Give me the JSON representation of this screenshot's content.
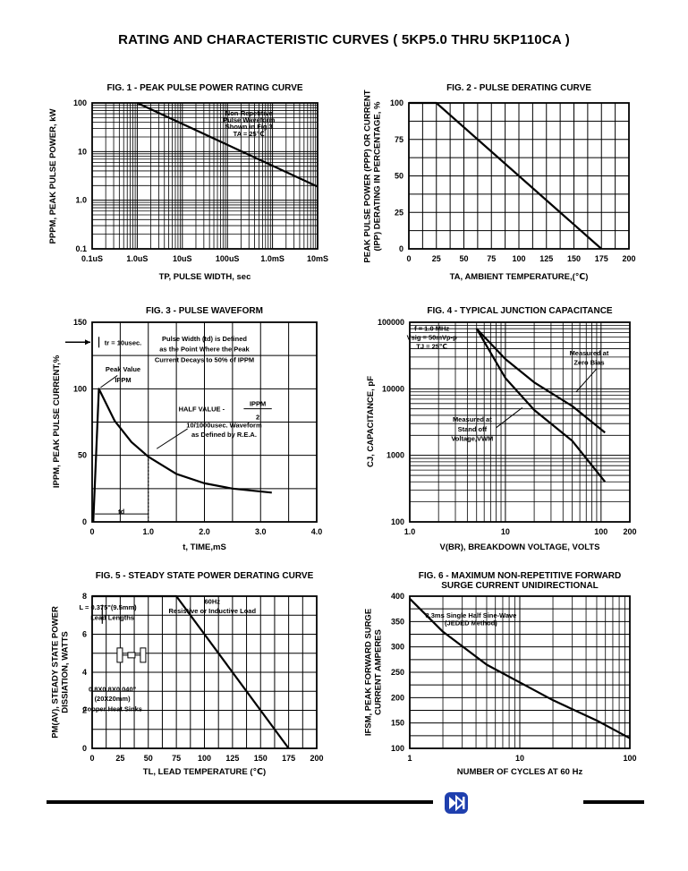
{
  "page_title": "RATING AND CHARACTERISTIC CURVES ( 5KP5.0 THRU 5KP110CA )",
  "chart_data": [
    {
      "id": "fig1",
      "type": "line",
      "title": "FIG. 1 - PEAK PULSE POWER RATING CURVE",
      "xlabel": "TP, PULSE WIDTH, sec",
      "ylabel": "PPPM, PEAK PULSE POWER, kW",
      "x_scale": "log",
      "y_scale": "log",
      "xlim": [
        1e-07,
        0.01
      ],
      "ylim": [
        0.1,
        100
      ],
      "x_ticks": [
        {
          "value": 1e-07,
          "label": "0.1uS"
        },
        {
          "value": 1e-06,
          "label": "1.0uS"
        },
        {
          "value": 1e-05,
          "label": "10uS"
        },
        {
          "value": 0.0001,
          "label": "100uS"
        },
        {
          "value": 0.001,
          "label": "1.0mS"
        },
        {
          "value": 0.01,
          "label": "10mS"
        }
      ],
      "y_ticks": [
        {
          "value": 0.1,
          "label": "0.1"
        },
        {
          "value": 1,
          "label": "1.0"
        },
        {
          "value": 10,
          "label": "10"
        },
        {
          "value": 100,
          "label": "100"
        }
      ],
      "series": [
        {
          "x": [
            1e-06,
            0.01
          ],
          "y": [
            100,
            1.9
          ]
        }
      ],
      "annotations": [
        {
          "text": "Non-Repetitive",
          "x": 0.0003,
          "y": 55
        },
        {
          "text": "Pulse Waveform",
          "x": 0.0003,
          "y": 40
        },
        {
          "text": "Shown in Fig.3",
          "x": 0.0003,
          "y": 29
        },
        {
          "text": "TA = 25℃",
          "x": 0.0003,
          "y": 21
        }
      ],
      "grid": true
    },
    {
      "id": "fig2",
      "type": "line",
      "title": "FIG. 2 - PULSE DERATING CURVE",
      "xlabel": "TA, AMBIENT TEMPERATURE,(℃)",
      "ylabel": "PEAK PULSE POWER (PPP) OR CURRENT (IPP) DERATING IN PERCENTAGE, %",
      "ylabel_lines": [
        "PEAK PULSE POWER (PPP) OR CURRENT",
        "(IPP) DERATING IN PERCENTAGE, %"
      ],
      "xlim": [
        0,
        200
      ],
      "ylim": [
        0,
        100
      ],
      "x_ticks": [
        0,
        25,
        50,
        75,
        100,
        125,
        150,
        175,
        200
      ],
      "y_ticks": [
        0,
        25,
        50,
        75,
        100
      ],
      "series": [
        {
          "x": [
            0,
            25,
            175
          ],
          "y": [
            100,
            100,
            0
          ]
        }
      ],
      "grid": true
    },
    {
      "id": "fig3",
      "type": "line",
      "title": "FIG. 3 - PULSE WAVEFORM",
      "xlabel": "t, TIME,mS",
      "ylabel": "IPPM, PEAK PULSE CURRENT,%",
      "xlim": [
        0,
        4
      ],
      "ylim": [
        0,
        150
      ],
      "x_ticks": [
        {
          "value": 0,
          "label": "0"
        },
        {
          "value": 1,
          "label": "1.0"
        },
        {
          "value": 2,
          "label": "2.0"
        },
        {
          "value": 3,
          "label": "3.0"
        },
        {
          "value": 4,
          "label": "4.0"
        }
      ],
      "y_ticks": [
        0,
        50,
        100,
        150
      ],
      "series": [
        {
          "x": [
            0.02,
            0.12,
            0.4,
            0.7,
            1.0,
            1.5,
            2.0,
            2.5,
            3.2
          ],
          "y": [
            0,
            100,
            76,
            60,
            49,
            36,
            29,
            25,
            22
          ]
        }
      ],
      "annotations": [
        {
          "text": "tr = 10usec.",
          "x": 0.55,
          "y": 133
        },
        {
          "text": "Pulse Width (td) is Defined",
          "x": 2.0,
          "y": 136
        },
        {
          "text": "as the Point Where the Peak",
          "x": 2.0,
          "y": 128
        },
        {
          "text": "Current Decays to 50% of IPPM",
          "x": 2.0,
          "y": 120
        },
        {
          "text": "Peak Value",
          "x": 0.55,
          "y": 113
        },
        {
          "text": "IPPM",
          "x": 0.55,
          "y": 105
        },
        {
          "text": "HALF VALUE -",
          "x": 1.95,
          "y": 83
        },
        {
          "text": "IPPM",
          "x": 2.95,
          "y": 87
        },
        {
          "text": "2",
          "x": 2.95,
          "y": 77
        },
        {
          "text": "10/1000usec. Waveform",
          "x": 2.35,
          "y": 71
        },
        {
          "text": "as Defined by R.E.A.",
          "x": 2.35,
          "y": 64
        },
        {
          "text": "td",
          "x": 0.52,
          "y": 6
        }
      ],
      "grid": true
    },
    {
      "id": "fig4",
      "type": "line",
      "title": "FIG. 4 - TYPICAL JUNCTION CAPACITANCE",
      "xlabel": "V(BR), BREAKDOWN VOLTAGE, VOLTS",
      "ylabel": "CJ, CAPACITANCE, pF",
      "x_scale": "log",
      "y_scale": "log",
      "xlim": [
        1,
        200
      ],
      "ylim": [
        100,
        100000
      ],
      "x_ticks": [
        {
          "value": 1,
          "label": "1.0"
        },
        {
          "value": 10,
          "label": "10"
        },
        {
          "value": 100,
          "label": "100"
        },
        {
          "value": 200,
          "label": "200"
        }
      ],
      "y_ticks": [
        {
          "value": 100,
          "label": "100"
        },
        {
          "value": 1000,
          "label": "1000"
        },
        {
          "value": 10000,
          "label": "10000"
        },
        {
          "value": 100000,
          "label": "100000"
        }
      ],
      "series": [
        {
          "name": "Measured at Zero Bias",
          "x": [
            5,
            10,
            20,
            50,
            110
          ],
          "y": [
            80000,
            28000,
            12500,
            5500,
            2200
          ]
        },
        {
          "name": "Measured at Stand off Voltage,VWM",
          "x": [
            5,
            10,
            20,
            50,
            110
          ],
          "y": [
            80000,
            14500,
            4800,
            1650,
            400
          ]
        }
      ],
      "annotations": [
        {
          "text": "f = 1.0 MHz",
          "x": 1.7,
          "y": 75000
        },
        {
          "text": "Vsig = 50mVp-p",
          "x": 1.7,
          "y": 55000
        },
        {
          "text": "TJ = 25℃",
          "x": 1.7,
          "y": 40000
        },
        {
          "text": "Measured at",
          "x": 75,
          "y": 32000
        },
        {
          "text": "Zero Bias",
          "x": 75,
          "y": 23000
        },
        {
          "text": "Measured at",
          "x": 4.5,
          "y": 3200
        },
        {
          "text": "Stand off",
          "x": 4.5,
          "y": 2300
        },
        {
          "text": "Voltage,VWM",
          "x": 4.5,
          "y": 1650
        }
      ],
      "grid": true
    },
    {
      "id": "fig5",
      "type": "line",
      "title": "FIG. 5 - STEADY STATE POWER DERATING CURVE",
      "xlabel": "TL, LEAD TEMPERATURE (℃)",
      "ylabel": "PM(AV), STEADY STATE POWER DISSIATION, WATTS",
      "ylabel_lines": [
        "PM(AV), STEADY STATE POWER",
        "DISSIATION, WATTS"
      ],
      "xlim": [
        0,
        200
      ],
      "ylim": [
        0,
        8
      ],
      "x_ticks": [
        0,
        25,
        50,
        75,
        100,
        125,
        150,
        175,
        200
      ],
      "y_ticks": [
        0,
        2,
        4,
        6,
        8
      ],
      "series": [
        {
          "x": [
            0,
            75,
            175
          ],
          "y": [
            8,
            8,
            0
          ]
        }
      ],
      "annotations": [
        {
          "text": "L = 0.375\"(9.5mm)",
          "x": 14,
          "y": 7.3
        },
        {
          "text": "Lead Lengths",
          "x": 18,
          "y": 6.75
        },
        {
          "text": "60Hz",
          "x": 107,
          "y": 7.6
        },
        {
          "text": "Resistive or Inductive Load",
          "x": 107,
          "y": 7.1
        },
        {
          "text": "0.8X0.8X0.040\"",
          "x": 18,
          "y": 3.0
        },
        {
          "text": "(20X20mm)",
          "x": 18,
          "y": 2.5
        },
        {
          "text": "Copper Heat Sinks",
          "x": 18,
          "y": 1.95
        }
      ],
      "grid": true
    },
    {
      "id": "fig6",
      "type": "line",
      "title": "FIG. 6 - MAXIMUM NON-REPETITIVE FORWARD SURGE CURRENT UNIDIRECTIONAL",
      "title_lines": [
        "FIG. 6 - MAXIMUM NON-REPETITIVE FORWARD",
        "SURGE CURRENT UNIDIRECTIONAL"
      ],
      "xlabel": "NUMBER OF CYCLES AT 60 Hz",
      "ylabel": "IFSM, PEAK FORWARD SURGE CURRENT AMPERES",
      "ylabel_lines": [
        "IFSM, PEAK FORWARD SURGE",
        "CURRENT AMPERES"
      ],
      "x_scale": "log",
      "xlim": [
        1,
        100
      ],
      "ylim": [
        100,
        400
      ],
      "x_ticks": [
        {
          "value": 1,
          "label": "1"
        },
        {
          "value": 10,
          "label": "10"
        },
        {
          "value": 100,
          "label": "100"
        }
      ],
      "y_ticks": [
        100,
        150,
        200,
        250,
        300,
        350,
        400
      ],
      "series": [
        {
          "x": [
            1,
            2,
            5,
            10,
            20,
            50,
            100
          ],
          "y": [
            395,
            330,
            265,
            230,
            195,
            155,
            120
          ]
        }
      ],
      "annotations": [
        {
          "text": "8.3ms Single Half Sine-Wave",
          "x": 3.6,
          "y": 358
        },
        {
          "text": "(JEDED Method)",
          "x": 3.6,
          "y": 343
        }
      ],
      "grid": true
    }
  ]
}
